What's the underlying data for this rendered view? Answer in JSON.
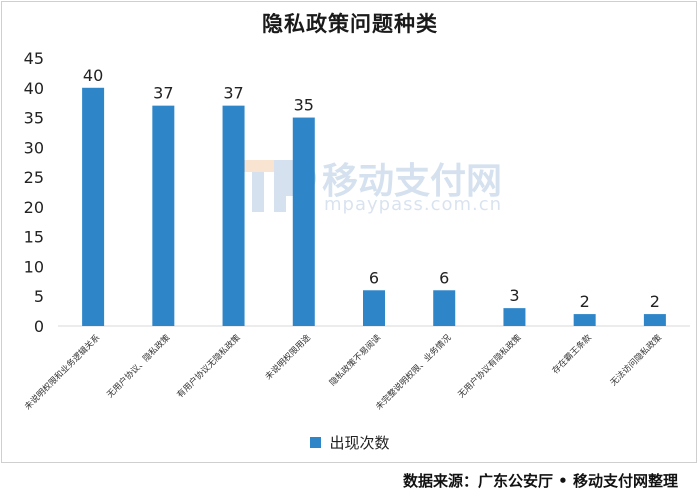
{
  "chart_data": {
    "type": "bar",
    "title": "隐私政策问题种类",
    "categories": [
      "未说明权限和业务逻辑关系",
      "无用户协议、隐私政策",
      "有用户协议无隐私政策",
      "未说明权限用途",
      "隐私政策不易阅读",
      "未完整说明权限、业务情况",
      "无用户协议有隐私政策",
      "存在霸王条款",
      "无法访问隐私政策"
    ],
    "series": [
      {
        "name": "出现次数",
        "values": [
          40,
          37,
          37,
          35,
          6,
          6,
          3,
          2,
          2
        ]
      }
    ],
    "ylim": [
      0,
      45
    ],
    "yticks": [
      0,
      5,
      10,
      15,
      20,
      25,
      30,
      35,
      40,
      45
    ],
    "xlabel": "",
    "ylabel": "",
    "grid": false,
    "legend": "bottom",
    "bar_color": "#2e86c9"
  },
  "watermark": {
    "brand": "移动支付网",
    "url": "mpaypass.com.cn",
    "color": "#6c97c9"
  },
  "source_note": "数据来源：广东公安厅 • 移动支付网整理"
}
